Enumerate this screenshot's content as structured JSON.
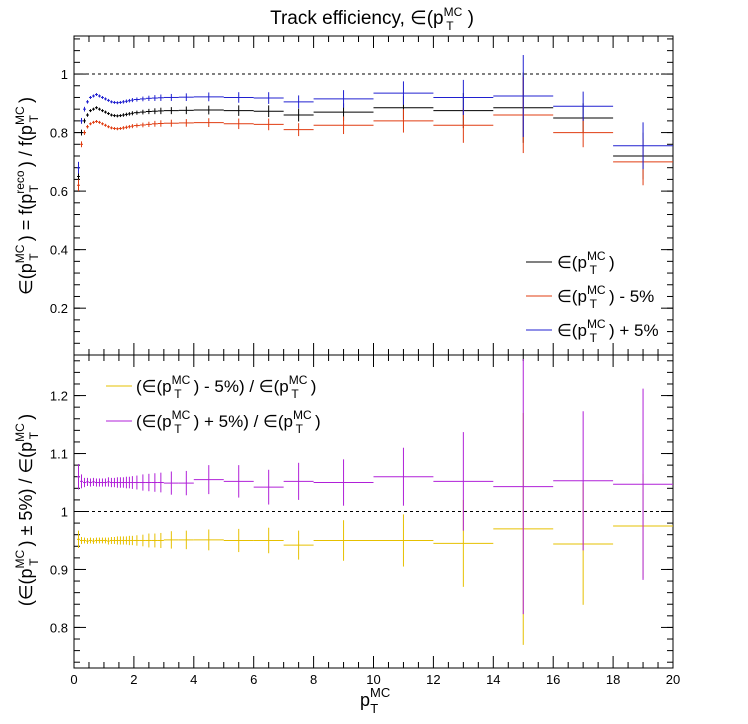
{
  "chart_data": [
    {
      "type": "scatter",
      "panel": "top",
      "title": "Track efficiency, ∈(pTMC)",
      "title_parts": {
        "base": "Track efficiency, ∈(p",
        "sup": "MC",
        "sub": "T",
        "close": ")"
      },
      "ylabel": "∈(pTMC) = f(pTreco) / f(pTMC)",
      "ylabel_parts": {
        "a": "∈(p",
        "a_sup": "MC",
        "a_sub": "T",
        "b": ") = f(p",
        "b_sup": "reco",
        "b_sub": "T",
        "c": ") / f(p",
        "c_sup": "MC",
        "c_sub": "T",
        "d": ")"
      },
      "xlim": [
        0,
        20
      ],
      "ylim": [
        0.04,
        1.13
      ],
      "yticks": [
        "0.2",
        "0.4",
        "0.6",
        "0.8",
        "1"
      ],
      "reference_line": 1,
      "legend_position": "bottom-right",
      "series": [
        {
          "name": "∈(pTMC)",
          "legend_parts": {
            "base": "∈(p",
            "sup": "MC",
            "sub": "T",
            "tail": ")"
          },
          "color": "#000000",
          "x": [
            0.15,
            0.25,
            0.35,
            0.45,
            0.55,
            0.65,
            0.75,
            0.85,
            0.95,
            1.05,
            1.15,
            1.25,
            1.35,
            1.45,
            1.55,
            1.65,
            1.75,
            1.85,
            1.95,
            2.1,
            2.3,
            2.5,
            2.7,
            2.9,
            3.25,
            3.75,
            4.5,
            5.5,
            6.5,
            7.5,
            9,
            11,
            13,
            15,
            17,
            19
          ],
          "y": [
            0.65,
            0.8,
            0.84,
            0.86,
            0.875,
            0.88,
            0.885,
            0.88,
            0.875,
            0.87,
            0.865,
            0.86,
            0.858,
            0.857,
            0.858,
            0.86,
            0.862,
            0.864,
            0.866,
            0.868,
            0.87,
            0.872,
            0.873,
            0.874,
            0.875,
            0.876,
            0.877,
            0.875,
            0.873,
            0.86,
            0.87,
            0.885,
            0.875,
            0.885,
            0.85,
            0.72
          ],
          "xerr": [
            0.05,
            0.05,
            0.05,
            0.05,
            0.05,
            0.05,
            0.05,
            0.05,
            0.05,
            0.05,
            0.05,
            0.05,
            0.05,
            0.05,
            0.05,
            0.05,
            0.05,
            0.05,
            0.05,
            0.1,
            0.1,
            0.1,
            0.1,
            0.1,
            0.25,
            0.25,
            0.5,
            0.5,
            0.5,
            0.5,
            1,
            1,
            1,
            1,
            1,
            1
          ],
          "yerr": [
            0.02,
            0.01,
            0.008,
            0.006,
            0.005,
            0.005,
            0.005,
            0.005,
            0.005,
            0.005,
            0.005,
            0.005,
            0.005,
            0.005,
            0.005,
            0.006,
            0.006,
            0.006,
            0.007,
            0.007,
            0.008,
            0.009,
            0.01,
            0.011,
            0.012,
            0.013,
            0.015,
            0.018,
            0.02,
            0.022,
            0.03,
            0.04,
            0.06,
            0.12,
            0.05,
            0.08
          ]
        },
        {
          "name": "∈(pTMC) - 5%",
          "legend_parts": {
            "base": "∈(p",
            "sup": "MC",
            "sub": "T",
            "tail": ") - 5%"
          },
          "color": "#e03c10",
          "x": [
            0.15,
            0.25,
            0.35,
            0.45,
            0.55,
            0.65,
            0.75,
            0.85,
            0.95,
            1.05,
            1.15,
            1.25,
            1.35,
            1.45,
            1.55,
            1.65,
            1.75,
            1.85,
            1.95,
            2.1,
            2.3,
            2.5,
            2.7,
            2.9,
            3.25,
            3.75,
            4.5,
            5.5,
            6.5,
            7.5,
            9,
            11,
            13,
            15,
            17,
            19
          ],
          "y": [
            0.62,
            0.76,
            0.8,
            0.82,
            0.83,
            0.835,
            0.838,
            0.835,
            0.83,
            0.825,
            0.82,
            0.816,
            0.814,
            0.813,
            0.814,
            0.816,
            0.818,
            0.82,
            0.822,
            0.824,
            0.826,
            0.828,
            0.83,
            0.831,
            0.832,
            0.833,
            0.834,
            0.83,
            0.828,
            0.81,
            0.825,
            0.84,
            0.825,
            0.86,
            0.8,
            0.7
          ],
          "xerr": [
            0.05,
            0.05,
            0.05,
            0.05,
            0.05,
            0.05,
            0.05,
            0.05,
            0.05,
            0.05,
            0.05,
            0.05,
            0.05,
            0.05,
            0.05,
            0.05,
            0.05,
            0.05,
            0.05,
            0.1,
            0.1,
            0.1,
            0.1,
            0.1,
            0.25,
            0.25,
            0.5,
            0.5,
            0.5,
            0.5,
            1,
            1,
            1,
            1,
            1,
            1
          ],
          "yerr": [
            0.02,
            0.01,
            0.008,
            0.006,
            0.005,
            0.005,
            0.005,
            0.005,
            0.005,
            0.005,
            0.005,
            0.005,
            0.005,
            0.005,
            0.005,
            0.006,
            0.006,
            0.006,
            0.007,
            0.007,
            0.008,
            0.009,
            0.01,
            0.011,
            0.012,
            0.013,
            0.015,
            0.018,
            0.02,
            0.022,
            0.03,
            0.04,
            0.06,
            0.13,
            0.05,
            0.08
          ]
        },
        {
          "name": "∈(pTMC) + 5%",
          "legend_parts": {
            "base": "∈(p",
            "sup": "MC",
            "sub": "T",
            "tail": ") + 5%"
          },
          "color": "#2020d0",
          "x": [
            0.15,
            0.25,
            0.35,
            0.45,
            0.55,
            0.65,
            0.75,
            0.85,
            0.95,
            1.05,
            1.15,
            1.25,
            1.35,
            1.45,
            1.55,
            1.65,
            1.75,
            1.85,
            1.95,
            2.1,
            2.3,
            2.5,
            2.7,
            2.9,
            3.25,
            3.75,
            4.5,
            5.5,
            6.5,
            7.5,
            9,
            11,
            13,
            15,
            17,
            19
          ],
          "y": [
            0.68,
            0.84,
            0.88,
            0.905,
            0.92,
            0.925,
            0.93,
            0.925,
            0.92,
            0.915,
            0.91,
            0.905,
            0.903,
            0.902,
            0.903,
            0.905,
            0.907,
            0.909,
            0.911,
            0.913,
            0.915,
            0.917,
            0.918,
            0.919,
            0.92,
            0.921,
            0.922,
            0.92,
            0.918,
            0.905,
            0.915,
            0.935,
            0.92,
            0.925,
            0.89,
            0.755
          ],
          "xerr": [
            0.05,
            0.05,
            0.05,
            0.05,
            0.05,
            0.05,
            0.05,
            0.05,
            0.05,
            0.05,
            0.05,
            0.05,
            0.05,
            0.05,
            0.05,
            0.05,
            0.05,
            0.05,
            0.05,
            0.1,
            0.1,
            0.1,
            0.1,
            0.1,
            0.25,
            0.25,
            0.5,
            0.5,
            0.5,
            0.5,
            1,
            1,
            1,
            1,
            1,
            1
          ],
          "yerr": [
            0.02,
            0.01,
            0.008,
            0.006,
            0.005,
            0.005,
            0.005,
            0.005,
            0.005,
            0.005,
            0.005,
            0.005,
            0.005,
            0.005,
            0.005,
            0.006,
            0.006,
            0.006,
            0.007,
            0.007,
            0.008,
            0.009,
            0.01,
            0.011,
            0.012,
            0.013,
            0.015,
            0.018,
            0.02,
            0.022,
            0.03,
            0.04,
            0.06,
            0.14,
            0.05,
            0.08
          ]
        }
      ]
    },
    {
      "type": "scatter",
      "panel": "bottom",
      "xlabel": "pTMC",
      "xlabel_parts": {
        "base": "p",
        "sup": "MC",
        "sub": "T"
      },
      "ylabel": "(∈(pTMC) ± 5%) / ∈(pTMC)",
      "ylabel_parts": {
        "a": "(∈(p",
        "a_sup": "MC",
        "a_sub": "T",
        "b": ") ± 5%) / ∈(p",
        "b_sup": "MC",
        "b_sub": "T",
        "c": ")"
      },
      "xlim": [
        0,
        20
      ],
      "ylim": [
        0.73,
        1.27
      ],
      "xticks": [
        "0",
        "2",
        "4",
        "6",
        "8",
        "10",
        "12",
        "14",
        "16",
        "18",
        "20"
      ],
      "yticks": [
        "0.8",
        "0.9",
        "1",
        "1.1",
        "1.2"
      ],
      "reference_line": 1,
      "legend_position": "top-left",
      "series": [
        {
          "name": "(∈(pTMC) - 5%) / ∈(pTMC)",
          "legend_parts": {
            "a": "(∈(p",
            "a_sup": "MC",
            "a_sub": "T",
            "b": ") - 5%) / ∈(p",
            "b_sup": "MC",
            "b_sub": "T",
            "c": ")"
          },
          "color": "#e6c000",
          "x": [
            0.15,
            0.25,
            0.35,
            0.45,
            0.55,
            0.65,
            0.75,
            0.85,
            0.95,
            1.05,
            1.15,
            1.25,
            1.35,
            1.45,
            1.55,
            1.65,
            1.75,
            1.85,
            1.95,
            2.1,
            2.3,
            2.5,
            2.7,
            2.9,
            3.25,
            3.75,
            4.5,
            5.5,
            6.5,
            7.5,
            9,
            11,
            13,
            15,
            17,
            19
          ],
          "y": [
            0.952,
            0.95,
            0.95,
            0.949,
            0.95,
            0.949,
            0.95,
            0.95,
            0.95,
            0.95,
            0.949,
            0.95,
            0.95,
            0.95,
            0.95,
            0.95,
            0.95,
            0.95,
            0.95,
            0.95,
            0.95,
            0.95,
            0.95,
            0.95,
            0.951,
            0.951,
            0.951,
            0.95,
            0.95,
            0.942,
            0.95,
            0.95,
            0.945,
            0.97,
            0.944,
            0.975
          ],
          "xerr": [
            0.05,
            0.05,
            0.05,
            0.05,
            0.05,
            0.05,
            0.05,
            0.05,
            0.05,
            0.05,
            0.05,
            0.05,
            0.05,
            0.05,
            0.05,
            0.05,
            0.05,
            0.05,
            0.05,
            0.1,
            0.1,
            0.1,
            0.1,
            0.1,
            0.25,
            0.25,
            0.5,
            0.5,
            0.5,
            0.5,
            1,
            1,
            1,
            1,
            1,
            1
          ],
          "yerr": [
            0.015,
            0.006,
            0.005,
            0.005,
            0.005,
            0.005,
            0.005,
            0.005,
            0.005,
            0.005,
            0.006,
            0.006,
            0.006,
            0.007,
            0.007,
            0.007,
            0.007,
            0.008,
            0.008,
            0.009,
            0.01,
            0.012,
            0.012,
            0.013,
            0.015,
            0.016,
            0.018,
            0.02,
            0.022,
            0.025,
            0.035,
            0.045,
            0.075,
            0.2,
            0.105,
            0.09
          ]
        },
        {
          "name": "(∈(pTMC) + 5%) / ∈(pTMC)",
          "legend_parts": {
            "a": "(∈(p",
            "a_sup": "MC",
            "a_sub": "T",
            "b": ") + 5%) / ∈(p",
            "b_sup": "MC",
            "b_sub": "T",
            "c": ")"
          },
          "color": "#b020d8",
          "x": [
            0.15,
            0.25,
            0.35,
            0.45,
            0.55,
            0.65,
            0.75,
            0.85,
            0.95,
            1.05,
            1.15,
            1.25,
            1.35,
            1.45,
            1.55,
            1.65,
            1.75,
            1.85,
            1.95,
            2.1,
            2.3,
            2.5,
            2.7,
            2.9,
            3.25,
            3.75,
            4.5,
            5.5,
            6.5,
            7.5,
            9,
            11,
            13,
            15,
            17,
            19
          ],
          "y": [
            1.06,
            1.052,
            1.05,
            1.051,
            1.05,
            1.051,
            1.05,
            1.05,
            1.05,
            1.05,
            1.051,
            1.05,
            1.05,
            1.05,
            1.05,
            1.05,
            1.05,
            1.05,
            1.05,
            1.05,
            1.05,
            1.05,
            1.05,
            1.05,
            1.049,
            1.049,
            1.055,
            1.052,
            1.042,
            1.052,
            1.05,
            1.06,
            1.052,
            1.043,
            1.053,
            1.047
          ],
          "xerr": [
            0.05,
            0.05,
            0.05,
            0.05,
            0.05,
            0.05,
            0.05,
            0.05,
            0.05,
            0.05,
            0.05,
            0.05,
            0.05,
            0.05,
            0.05,
            0.05,
            0.05,
            0.05,
            0.05,
            0.1,
            0.1,
            0.1,
            0.1,
            0.1,
            0.25,
            0.25,
            0.5,
            0.5,
            0.5,
            0.5,
            1,
            1,
            1,
            1,
            1,
            1
          ],
          "yerr": [
            0.022,
            0.012,
            0.008,
            0.007,
            0.007,
            0.007,
            0.007,
            0.007,
            0.007,
            0.007,
            0.008,
            0.008,
            0.008,
            0.009,
            0.009,
            0.009,
            0.01,
            0.01,
            0.011,
            0.012,
            0.014,
            0.015,
            0.016,
            0.017,
            0.02,
            0.021,
            0.025,
            0.028,
            0.03,
            0.032,
            0.04,
            0.05,
            0.085,
            0.22,
            0.12,
            0.165
          ]
        }
      ]
    }
  ]
}
